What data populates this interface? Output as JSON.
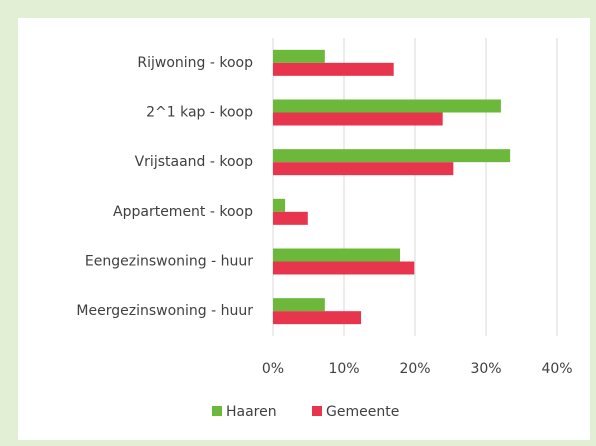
{
  "chart_data": {
    "type": "hbar",
    "categories": [
      "Rijwoning - koop",
      "2^1 kap - koop",
      "Vrijstaand - koop",
      "Appartement - koop",
      "Eengezinswoning - huur",
      "Meergezinswoning - huur"
    ],
    "series": [
      {
        "name": "Haaren",
        "color": "#6cb83a",
        "values": [
          7.3,
          32.1,
          33.4,
          1.7,
          17.9,
          7.3
        ]
      },
      {
        "name": "Gemeente",
        "color": "#e8354e",
        "values": [
          17.0,
          23.9,
          25.4,
          4.9,
          19.9,
          12.4
        ]
      }
    ],
    "xlim": [
      0,
      40
    ],
    "xticks": [
      {
        "value": 0,
        "label": "0%"
      },
      {
        "value": 10,
        "label": "10%"
      },
      {
        "value": 20,
        "label": "20%"
      },
      {
        "value": 30,
        "label": "30%"
      },
      {
        "value": 40,
        "label": "40%"
      }
    ],
    "grid": true,
    "legend": "bottom"
  }
}
